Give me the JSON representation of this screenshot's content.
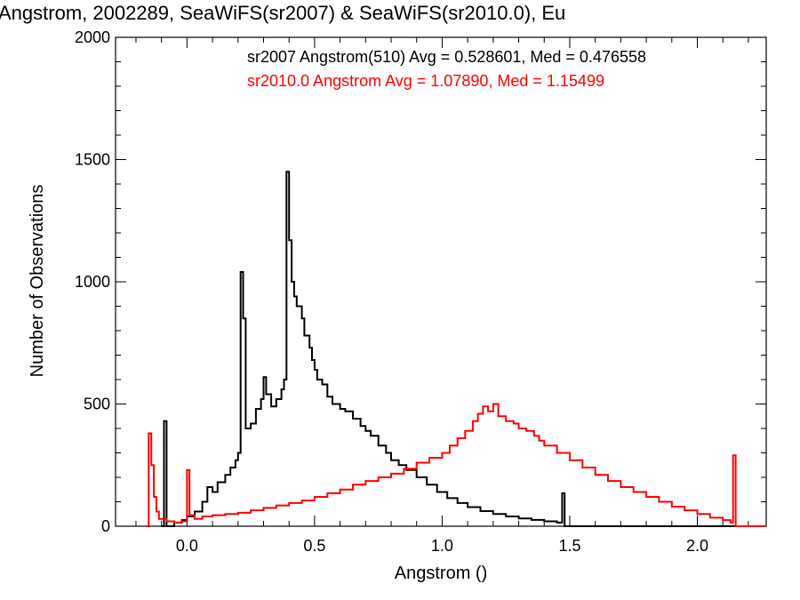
{
  "chart_data": {
    "type": "line",
    "step": true,
    "title": "Angstrom, 2002289, SeaWiFS(sr2007) & SeaWiFS(sr2010.0), Eu",
    "xlabel": "Angstrom ()",
    "ylabel": "Number of Observations",
    "xlim": [
      -0.28,
      2.27
    ],
    "ylim": [
      0,
      2000
    ],
    "xticks": [
      "0.0",
      "0.5",
      "1.0",
      "1.5",
      "2.0"
    ],
    "yticks": [
      "0",
      "500",
      "1000",
      "1500",
      "2000"
    ],
    "grid": false,
    "legend": [
      {
        "text": "sr2007 Angstrom(510) Avg = 0.528601, Med = 0.476558",
        "color": "#000000"
      },
      {
        "text": "sr2010.0 Angstrom Avg = 1.07890, Med = 1.15499",
        "color": "#ff0000"
      }
    ],
    "series": [
      {
        "color": "#000000",
        "points": [
          [
            -0.1,
            0
          ],
          [
            -0.09,
            430
          ],
          [
            -0.08,
            0
          ],
          [
            -0.05,
            15
          ],
          [
            -0.02,
            25
          ],
          [
            0.0,
            40
          ],
          [
            0.03,
            60
          ],
          [
            0.06,
            100
          ],
          [
            0.08,
            160
          ],
          [
            0.1,
            140
          ],
          [
            0.12,
            180
          ],
          [
            0.15,
            210
          ],
          [
            0.17,
            240
          ],
          [
            0.19,
            270
          ],
          [
            0.2,
            300
          ],
          [
            0.21,
            1040
          ],
          [
            0.22,
            850
          ],
          [
            0.23,
            400
          ],
          [
            0.25,
            420
          ],
          [
            0.27,
            480
          ],
          [
            0.29,
            520
          ],
          [
            0.3,
            610
          ],
          [
            0.31,
            540
          ],
          [
            0.33,
            490
          ],
          [
            0.35,
            520
          ],
          [
            0.37,
            560
          ],
          [
            0.38,
            600
          ],
          [
            0.39,
            1450
          ],
          [
            0.4,
            1170
          ],
          [
            0.41,
            1000
          ],
          [
            0.42,
            940
          ],
          [
            0.43,
            900
          ],
          [
            0.45,
            850
          ],
          [
            0.46,
            780
          ],
          [
            0.48,
            730
          ],
          [
            0.49,
            680
          ],
          [
            0.5,
            640
          ],
          [
            0.51,
            600
          ],
          [
            0.53,
            580
          ],
          [
            0.55,
            530
          ],
          [
            0.57,
            500
          ],
          [
            0.6,
            480
          ],
          [
            0.62,
            470
          ],
          [
            0.65,
            440
          ],
          [
            0.68,
            410
          ],
          [
            0.7,
            390
          ],
          [
            0.72,
            370
          ],
          [
            0.75,
            330
          ],
          [
            0.78,
            300
          ],
          [
            0.8,
            270
          ],
          [
            0.83,
            250
          ],
          [
            0.86,
            230
          ],
          [
            0.9,
            200
          ],
          [
            0.94,
            170
          ],
          [
            0.98,
            140
          ],
          [
            1.02,
            115
          ],
          [
            1.06,
            95
          ],
          [
            1.1,
            78
          ],
          [
            1.15,
            62
          ],
          [
            1.2,
            50
          ],
          [
            1.25,
            40
          ],
          [
            1.3,
            32
          ],
          [
            1.35,
            26
          ],
          [
            1.4,
            20
          ],
          [
            1.45,
            15
          ],
          [
            1.47,
            135
          ],
          [
            1.48,
            0
          ],
          [
            2.27,
            0
          ]
        ]
      },
      {
        "color": "#ff0000",
        "points": [
          [
            -0.16,
            0
          ],
          [
            -0.15,
            380
          ],
          [
            -0.14,
            250
          ],
          [
            -0.13,
            120
          ],
          [
            -0.12,
            60
          ],
          [
            -0.11,
            30
          ],
          [
            -0.08,
            20
          ],
          [
            -0.05,
            15
          ],
          [
            -0.02,
            20
          ],
          [
            0.0,
            230
          ],
          [
            0.01,
            45
          ],
          [
            0.03,
            30
          ],
          [
            0.06,
            40
          ],
          [
            0.1,
            45
          ],
          [
            0.15,
            50
          ],
          [
            0.2,
            55
          ],
          [
            0.25,
            65
          ],
          [
            0.3,
            75
          ],
          [
            0.35,
            85
          ],
          [
            0.4,
            95
          ],
          [
            0.45,
            105
          ],
          [
            0.5,
            120
          ],
          [
            0.55,
            135
          ],
          [
            0.6,
            150
          ],
          [
            0.65,
            170
          ],
          [
            0.7,
            185
          ],
          [
            0.75,
            200
          ],
          [
            0.8,
            215
          ],
          [
            0.85,
            235
          ],
          [
            0.9,
            260
          ],
          [
            0.95,
            280
          ],
          [
            1.0,
            300
          ],
          [
            1.03,
            330
          ],
          [
            1.06,
            360
          ],
          [
            1.09,
            390
          ],
          [
            1.12,
            430
          ],
          [
            1.14,
            460
          ],
          [
            1.16,
            490
          ],
          [
            1.18,
            470
          ],
          [
            1.2,
            500
          ],
          [
            1.22,
            450
          ],
          [
            1.25,
            430
          ],
          [
            1.28,
            420
          ],
          [
            1.3,
            400
          ],
          [
            1.33,
            390
          ],
          [
            1.36,
            370
          ],
          [
            1.38,
            350
          ],
          [
            1.4,
            330
          ],
          [
            1.45,
            300
          ],
          [
            1.5,
            270
          ],
          [
            1.55,
            240
          ],
          [
            1.6,
            210
          ],
          [
            1.65,
            185
          ],
          [
            1.7,
            160
          ],
          [
            1.75,
            140
          ],
          [
            1.8,
            120
          ],
          [
            1.85,
            100
          ],
          [
            1.9,
            80
          ],
          [
            1.95,
            65
          ],
          [
            2.0,
            50
          ],
          [
            2.05,
            35
          ],
          [
            2.1,
            25
          ],
          [
            2.13,
            15
          ],
          [
            2.14,
            290
          ],
          [
            2.15,
            0
          ],
          [
            2.27,
            0
          ]
        ]
      }
    ]
  }
}
